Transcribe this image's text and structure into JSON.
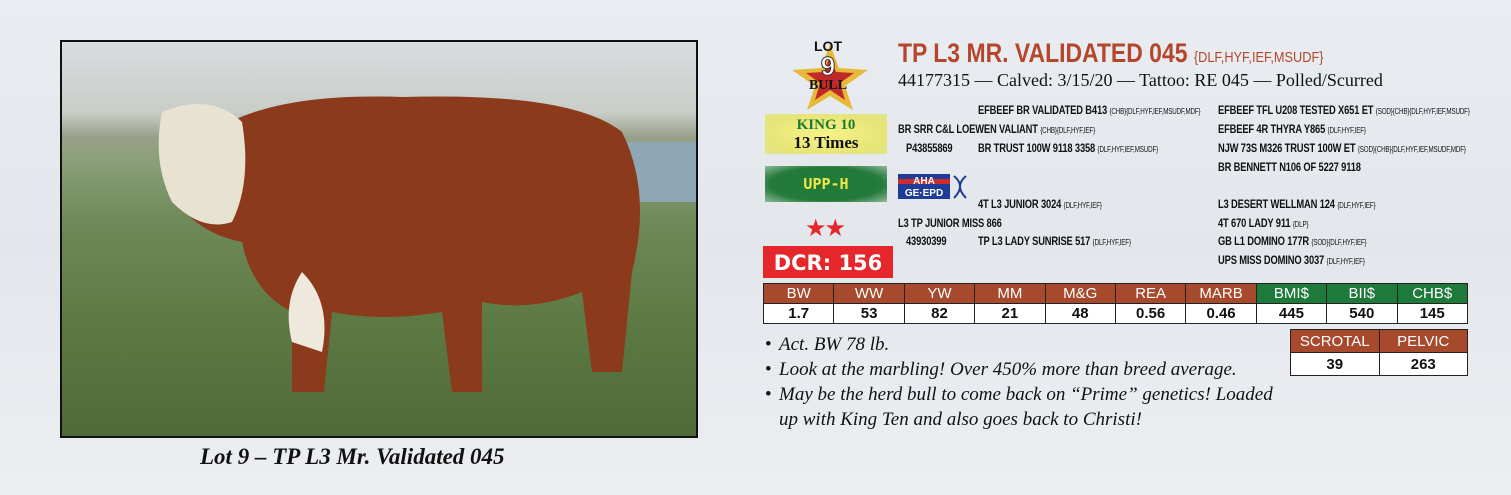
{
  "photo": {
    "caption": "Lot 9 – TP L3 Mr. Validated 045"
  },
  "badge": {
    "lot_label": "LOT",
    "lot_number": "9",
    "sex": "BULL",
    "king_line1": "KING 10",
    "king_line2": "13 Times",
    "upp": "UPP-H",
    "stars": "★★",
    "star_count": 2,
    "dcr": "DCR: 156",
    "aha_logo": "AHA GE-EPD"
  },
  "animal": {
    "name": "TP L3 MR. VALIDATED 045",
    "tests": "{DLF,HYF,IEF,MSUDF}",
    "details": "44177315 — Calved: 3/15/20 — Tattoo: RE 045 — Polled/Scurred"
  },
  "pedigree": {
    "sire": {
      "name": "BR SRR C&L LOEWEN VALIANT",
      "tags": "{CHB}{DLF,HYF,IEF}",
      "reg": "P43855869",
      "ss": {
        "name": "EFBEEF BR VALIDATED B413",
        "tags": "{CHB}{DLF,HYF,IEF,MSUDF,MDF}"
      },
      "sd": {
        "name": "BR TRUST 100W 9118 3358",
        "tags": "{DLF,HYF,IEF,MSUDF}"
      },
      "sss": {
        "name": "EFBEEF TFL U208 TESTED X651 ET",
        "tags": "{SOD}{CHB}{DLF,HYF,IEF,MSUDF}"
      },
      "ssd": {
        "name": "EFBEEF 4R THYRA Y865",
        "tags": "{DLF,HYF,IEF}"
      },
      "sds": {
        "name": "NJW 73S M326 TRUST 100W ET",
        "tags": "{SOD}{CHB}{DLF,HYF,IEF,MSUDF,MDF}"
      },
      "sdd": {
        "name": "BR BENNETT N106 OF 5227 9118",
        "tags": ""
      }
    },
    "dam": {
      "name": "L3 TP JUNIOR MISS 866",
      "tags": "",
      "reg": "43930399",
      "ds": {
        "name": "4T L3 JUNIOR 3024",
        "tags": "{DLF,HYF,IEF}"
      },
      "dd": {
        "name": "TP L3 LADY SUNRISE 517",
        "tags": "{DLF,HYF,IEF}"
      },
      "dss": {
        "name": "L3 DESERT WELLMAN 124",
        "tags": "{DLF,HYF,IEF}"
      },
      "dsd": {
        "name": "4T 670 LADY 911",
        "tags": "{DLP}"
      },
      "dds": {
        "name": "GB L1 DOMINO 177R",
        "tags": "{SOD}{DLF,HYF,IEF}"
      },
      "ddd": {
        "name": "UPS MISS DOMINO 3037",
        "tags": "{DLF,HYF,IEF}"
      }
    }
  },
  "epd": {
    "headers": [
      "BW",
      "WW",
      "YW",
      "MM",
      "M&G",
      "REA",
      "MARB",
      "BMI$",
      "BII$",
      "CHB$"
    ],
    "values": [
      "1.7",
      "53",
      "82",
      "21",
      "48",
      "0.56",
      "0.46",
      "445",
      "540",
      "145"
    ]
  },
  "measures": {
    "headers": [
      "SCROTAL",
      "PELVIC"
    ],
    "values": [
      "39",
      "263"
    ]
  },
  "notes": [
    "Act. BW 78 lb.",
    "Look at the marbling! Over 450% more than breed average.",
    "May be the herd bull to come back on “Prime” genetics! Loaded",
    "up with King Ten and also goes back to Christi!"
  ],
  "colors": {
    "title": "#b5452b",
    "epd_header": "#a6492d",
    "index_header": "#1e7a3a",
    "dcr": "#e5262a",
    "upp": "#237a3b",
    "king": "#e8e577"
  }
}
